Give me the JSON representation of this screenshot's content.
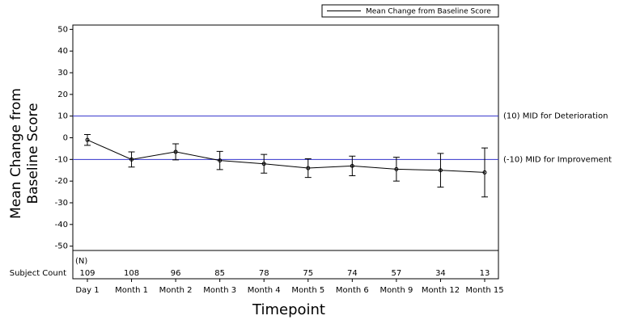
{
  "chart_data": {
    "type": "line",
    "xlabel": "Timepoint",
    "ylabel": [
      "Mean Change from",
      "Baseline Score"
    ],
    "categories": [
      "Day 1",
      "Month 1",
      "Month 2",
      "Month 3",
      "Month 4",
      "Month 5",
      "Month 6",
      "Month 9",
      "Month 12",
      "Month 15"
    ],
    "series": [
      {
        "name": "Mean Change from Baseline Score",
        "color": "#000000",
        "values": [
          -1,
          -10,
          -6.5,
          -10.5,
          -12,
          -14,
          -13,
          -14.5,
          -15,
          -16
        ],
        "errors": [
          2.5,
          3.5,
          3.7,
          4.2,
          4.3,
          4.3,
          4.5,
          5.5,
          7.8,
          11.3
        ]
      }
    ],
    "ylim": [
      -52,
      52
    ],
    "yticks": [
      -50,
      -40,
      -30,
      -20,
      -10,
      0,
      10,
      20,
      30,
      40,
      50
    ],
    "reference_lines": [
      {
        "value": 10,
        "label": "(10) MID for Deterioration",
        "color": "#3333cc"
      },
      {
        "value": -10,
        "label": "(-10) MID for Improvement",
        "color": "#3333cc"
      }
    ],
    "subject_count": {
      "label": "Subject Count",
      "header": "(N)",
      "values": [
        109,
        108,
        96,
        85,
        78,
        75,
        74,
        57,
        34,
        13
      ]
    },
    "legend": "top-right"
  }
}
